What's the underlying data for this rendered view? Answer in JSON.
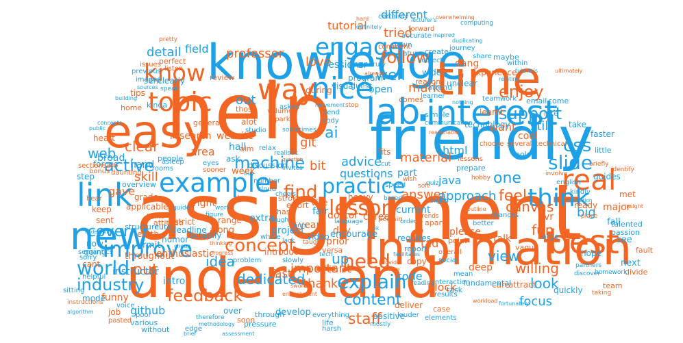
{
  "palette": {
    "orange": "#f26522",
    "blue": "#1ea0e6",
    "background": "#ffffff"
  },
  "words": {
    "assignment": "assignment",
    "help": "help",
    "understand": "understand",
    "friendly": "friendly",
    "knowledge": "knowledge",
    "information": "information",
    "easy": "easy",
    "lab": "lab",
    "interest": "interest",
    "time": "time",
    "new": "new",
    "best": "best",
    "link": "link",
    "example": "example",
    "nice": "nice",
    "way": "way",
    "topic": "topic",
    "know": "know",
    "engage": "engage",
    "practice": "practice",
    "lesson": "lesson",
    "real": "real",
    "think": "think",
    "slide": "slide",
    "improve": "improve",
    "concept": "concept",
    "need": "need",
    "explain": "explain",
    "feedback": "feedback",
    "industry": "industry",
    "world": "world",
    "active": "active",
    "machine": "machine",
    "support": "support",
    "css": "css",
    "cover": "cover",
    "content": "content",
    "follow": "follow",
    "detail": "detail",
    "professor": "professor",
    "love": "love",
    "well": "well",
    "enjoy": "enjoy",
    "ai": "ai",
    "find": "find",
    "advice": "advice",
    "material": "material",
    "answer": "answer",
    "approach": "approach",
    "one": "one",
    "fun": "fun",
    "feel": "feel",
    "mark": "mark",
    "clear": "clear",
    "web": "web",
    "put": "put",
    "idea": "idea",
    "dedicated": "dedicated",
    "important": "important",
    "thank": "thank",
    "staff": "staff",
    "up": "up",
    "canvas": "canvas",
    "view": "view",
    "willing": "willing",
    "look": "look",
    "focus": "focus",
    "big": "big",
    "still": "still",
    "want": "want",
    "out": "out",
    "tutorial": "tutorial",
    "different": "different",
    "tried": "tried",
    "sessions": "sessions",
    "field": "field",
    "area": "area",
    "skill": "skill",
    "gave": "gave",
    "broad": "broad",
    "hand": "hand",
    "research": "research",
    "website": "website",
    "git": "git",
    "bit": "bit",
    "questions": "questions",
    "html": "html",
    "java": "java",
    "program": "program",
    "open": "open",
    "part": "part",
    "career": "career",
    "doctor": "doctor",
    "fair": "fair",
    "extra": "extra",
    "project": "project",
    "year": "year",
    "current": "current",
    "day": "day",
    "prior": "prior",
    "tad": "tad",
    "code": "code",
    "block": "block",
    "talk": "talk",
    "please": "please",
    "deep": "deep",
    "copy": "copy",
    "github": "github",
    "funny": "funny",
    "instructor": "instructor",
    "intro": "intro",
    "mode": "mode",
    "enthusiastic": "enthusiastic",
    "throughout": "throughout",
    "rmit": "rmit",
    "humor": "humor",
    "right": "right",
    "week": "week",
    "experience": "experience",
    "learnt": "learnt",
    "technology": "technology",
    "cool": "cool",
    "tips": "tips",
    "ar": "ar",
    "vr": "vr",
    "hall": "hall",
    "ask": "ask",
    "alot": "alot",
    "forces": "forces",
    "sem": "sem",
    "kinda": "kinda",
    "grade": "grade",
    "cant": "cant",
    "keep": "keep",
    "sent": "sent",
    "step": "step",
    "earth": "earth",
    "now": "now",
    "going": "going",
    "sorry": "sorry",
    "job": "job",
    "along": "along",
    "range": "range",
    "deadline": "deadline",
    "law": "law",
    "strict": "strict",
    "actually": "actually",
    "fast": "fast",
    "develop": "develop",
    "over": "over",
    "soon": "soon",
    "through": "through",
    "positive": "positive",
    "life": "life",
    "deliver": "deliver",
    "case": "case",
    "major": "major",
    "fall": "fall",
    "see": "see",
    "met": "met",
    "next": "next",
    "hope": "hope",
    "ready": "ready",
    "guides": "guides",
    "take": "take",
    "faster": "faster",
    "little": "little",
    "care": "care",
    "attract": "attract",
    "quickly": "quickly",
    "team": "team",
    "fault": "fault",
    "divide": "divide",
    "structure": "structure",
    "cute": "cute",
    "people": "people",
    "visual": "visual",
    "interaction": "interaction",
    "results": "results",
    "task": "task",
    "fundamental": "fundamental",
    "dang": "dang",
    "maybe": "maybe",
    "wide": "wide",
    "unclear": "unclear",
    "attend": "attend",
    "create": "create",
    "subject": "subject",
    "encourage": "encourage",
    "email": "email",
    "come": "come",
    "late": "late",
    "during": "during",
    "review": "review",
    "clearly": "clearly",
    "perfect": "perfect",
    "listen": "listen",
    "images": "images",
    "previous": "previous",
    "issues": "issues",
    "home": "home",
    "heart": "heart",
    "rooms": "rooms",
    "aim": "aim",
    "discussion": "discussion",
    "overview": "overview",
    "vice": "vice",
    "versa": "versa",
    "eyes": "eyes",
    "sooner": "sooner",
    "applicable": "applicable",
    "semantics": "semantics",
    "helpful": "helpful",
    "video": "video",
    "poor": "poor",
    "various": "various",
    "without": "without",
    "edge": "edge",
    "pressure": "pressure",
    "everything": "everything",
    "harsh": "harsh",
    "introduce": "introduce",
    "slowly": "slowly",
    "effort": "effort",
    "chase": "chase",
    "general": "general",
    "sessionsare": "sectionsare",
    "bonus": "bonus",
    "asleep": "asleep",
    "voice": "voice",
    "pasted": "pasted",
    "instructions": "instructions",
    "sitting": "sitting",
    "problem": "problem",
    "requires": "requires",
    "report": "report",
    "chances": "chances",
    "better": "better",
    "vague": "vague",
    "pertain": "pertain",
    "apart": "apart",
    "point": "point",
    "overall": "overall",
    "social": "social",
    "mean": "mean",
    "reading": "reading",
    "heavy": "heavy",
    "speed": "speed",
    "quiz": "quiz",
    "kindly": "kindly",
    "english": "english",
    "tools": "tools",
    "choose": "choose",
    "several": "several",
    "technical": "technical",
    "lessons": "lessons",
    "simple": "simple",
    "reason": "reason",
    "comes": "comes",
    "guest": "guest",
    "truly": "truly",
    "down": "down",
    "nature": "nature",
    "comment": "comment",
    "forward": "forward",
    "accurate": "accurate",
    "certainly": "certainly",
    "journey": "journey",
    "share": "share",
    "within": "within",
    "passion": "passion",
    "talented": "talented",
    "tlarge": "large",
    "asked": "asked",
    "sometimes": "sometimes",
    "studio": "studio",
    "volume": "volume",
    "spark": "sparks",
    "those": "those",
    "relax": "relax",
    "realistic": "realistic",
    "daunting": "daunting",
    "attitude": "attitude",
    "guide": "guide",
    "number": "number",
    "cloud": "cloud",
    "traits": "traits",
    "invites": "invites",
    "cheers": "cheers",
    "laugh": "laugh",
    "movement": "movement",
    "send": "send",
    "body": "body",
    "stroke": "strokes",
    "stop": "stop",
    "figure": "figure",
    "whole": "whole",
    "work": "work",
    "based": "based",
    "language": "language",
    "tech": "tech",
    "lack": "lack",
    "slight": "slight",
    "soft": "soft",
    "prepare": "prepare",
    "hobby": "hobby",
    "involve": "involve",
    "briefly": "briefly",
    "identify": "identify",
    "place": "place",
    "insight": "insight",
    "partners": "partners",
    "discover": "discover",
    "homework": "homework",
    "taking": "taking",
    "mostly": "mostly",
    "louder": "louder",
    "elements": "elements",
    "therefore": "therefore",
    "hints": "hints",
    "taught": "taught",
    "teamwork": "teamwork",
    "learner": "learner",
    "communication": "communication",
    "wish": "wish",
    "cut": "cut",
    "fits": "fits",
    "trends": "trends",
    "order": "order",
    "ok": "ok",
    "provide": "provide",
    "entire": "entire",
    "buy": "buy",
    "nothing": "nothing",
    "speak": "speak",
    "sources": "sources",
    "already": "already",
    "relating": "relating",
    "inspired": "inspired",
    "duplicating": "duplicating",
    "computing": "computing",
    "overwhelming": "overwhelming",
    "lecturer": "lecturer's",
    "hard": "hard",
    "definitely": "definitely",
    "pretty": "pretty",
    "building": "building",
    "concepts": "concepts",
    "public": "public",
    "hear": "hear",
    "undertaking": "undertaking",
    "sword": "sword",
    "environment": "environment",
    "thinking": "thinking",
    "cheap": "cheap",
    "facilitates": "facilitates",
    "outline": "outline",
    "fortunately": "fortunately",
    "algorithm": "algorithm",
    "progress": "progress",
    "brief": "brief",
    "presentation": "presentation",
    "ultimately": "ultimately",
    "workload": "workload",
    "tutorials": "tutorials",
    "assessment": "assessment",
    "reasonable": "reasonable",
    "question": "question",
    "methodology": "methodology"
  }
}
